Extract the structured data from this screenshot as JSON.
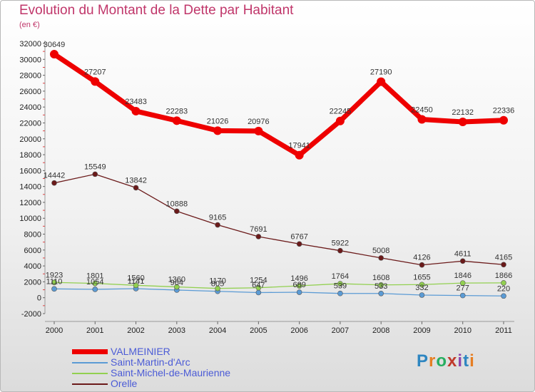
{
  "chart_data": {
    "type": "line",
    "title": "Evolution du Montant de la Dette par Habitant",
    "subtitle": "(en €)",
    "x": [
      "2000",
      "2001",
      "2002",
      "2003",
      "2004",
      "2005",
      "2006",
      "2007",
      "2008",
      "2009",
      "2010",
      "2011"
    ],
    "ylim": [
      -2000,
      32000
    ],
    "yticks": [
      "-2000",
      "0",
      "2000",
      "4000",
      "6000",
      "8000",
      "10000",
      "12000",
      "14000",
      "16000",
      "18000",
      "20000",
      "22000",
      "24000",
      "26000",
      "28000",
      "30000",
      "32000"
    ],
    "grid": false,
    "legend_position": "bottom-left",
    "series": [
      {
        "name": "VALMEINIER",
        "color": "#ee0000",
        "labels": [
          "30649",
          "27207",
          "23483",
          "22283",
          "21026",
          "20976",
          "17941",
          "22245",
          "27190",
          "22450",
          "22132",
          "22336"
        ],
        "values": [
          30649,
          27207,
          23483,
          22283,
          21026,
          20976,
          17941,
          22245,
          27190,
          22450,
          22132,
          22336
        ]
      },
      {
        "name": "Saint-Martin-d'Arc",
        "color": "#5b9bd5",
        "labels": [
          "1110",
          "1054",
          "1141",
          "964",
          "805",
          "647",
          "689",
          "539",
          "533",
          "332",
          "277",
          "220"
        ],
        "values": [
          1110,
          1054,
          1141,
          964,
          805,
          647,
          689,
          539,
          533,
          332,
          277,
          220
        ]
      },
      {
        "name": "Saint-Michel-de-Maurienne",
        "color": "#92d050",
        "labels": [
          "1923",
          "1801",
          "1560",
          "1360",
          "1170",
          "1254",
          "1496",
          "1764",
          "1608",
          "1655",
          "1846",
          "1866"
        ],
        "values": [
          1923,
          1801,
          1560,
          1360,
          1170,
          1254,
          1496,
          1764,
          1608,
          1655,
          1846,
          1866
        ]
      },
      {
        "name": "Orelle",
        "color": "#6b1a1a",
        "labels": [
          "14442",
          "15549",
          "13842",
          "10888",
          "9165",
          "7691",
          "6767",
          "5922",
          "5008",
          "4126",
          "4611",
          "4165"
        ],
        "values": [
          14442,
          15549,
          13842,
          10888,
          9165,
          7691,
          6767,
          5922,
          5008,
          4126,
          4611,
          4165
        ]
      }
    ]
  },
  "logo": {
    "letters": [
      "P",
      "r",
      "o",
      "x",
      "i",
      "t",
      "i"
    ],
    "colors": [
      "#2e86c1",
      "#e67e22",
      "#27ae60",
      "#c0392b",
      "#8e44ad",
      "#2e86c1",
      "#e67e22"
    ]
  }
}
